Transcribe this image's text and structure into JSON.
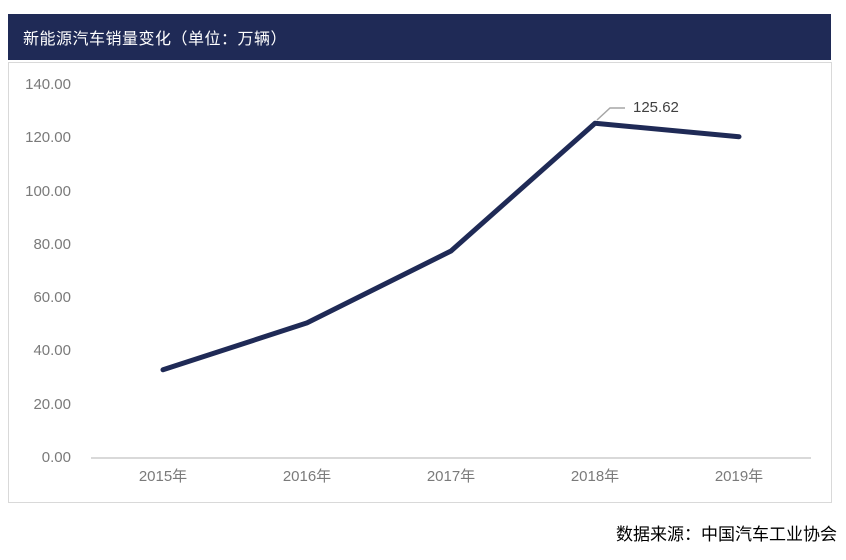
{
  "header": {
    "title": "新能源汽车销量变化（单位：万辆）"
  },
  "theme": {
    "navy": "#1f2a56",
    "axis_gray": "#d9d9d9",
    "tick_gray": "#7a7a7a",
    "annotation_gray": "#404040",
    "leader_gray": "#a6a6a6",
    "background": "#ffffff"
  },
  "footer": {
    "source": "数据来源：中国汽车工业协会"
  },
  "chart_data": {
    "type": "line",
    "title": "新能源汽车销量变化（单位：万辆）",
    "unit": "万辆",
    "categories": [
      "2015年",
      "2016年",
      "2017年",
      "2018年",
      "2019年"
    ],
    "series": [
      {
        "name": "新能源汽车销量",
        "values": [
          33.11,
          50.7,
          77.7,
          125.62,
          120.6
        ]
      }
    ],
    "annotation": {
      "category": "2018年",
      "index": 3,
      "label": "125.62"
    },
    "ylim": [
      0,
      140
    ],
    "ytick_step": 20,
    "ytick_labels_top_down": [
      "140.00",
      "120.00",
      "100.00",
      "80.00",
      "60.00",
      "40.00",
      "20.00",
      "0.00"
    ],
    "grid": false,
    "legend": "none",
    "axes": {
      "x_axis_line": true,
      "y_axis_line": false
    }
  }
}
